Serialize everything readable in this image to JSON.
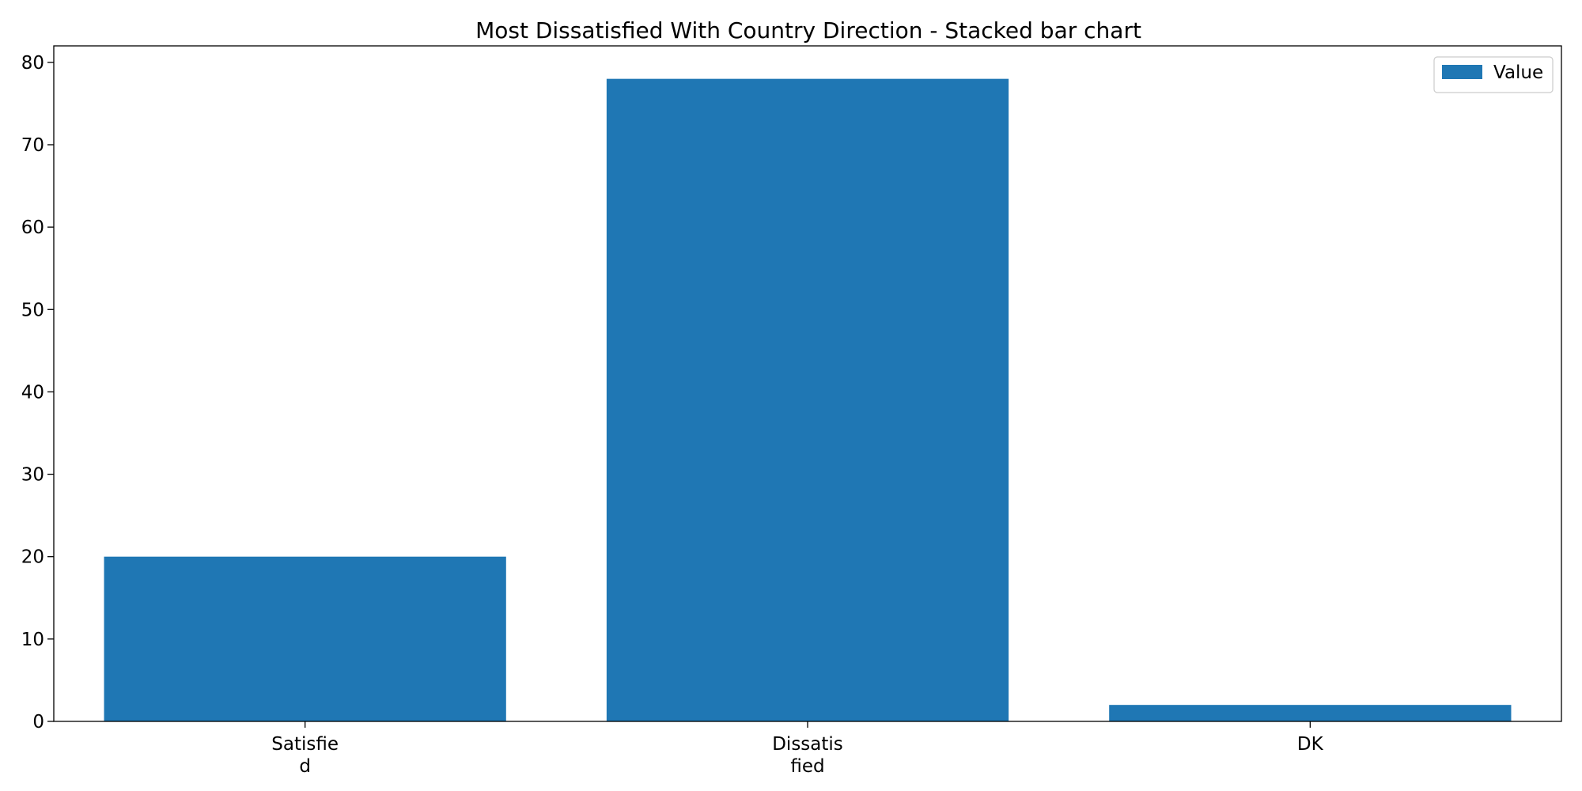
{
  "chart_data": {
    "type": "bar",
    "title": "Most Dissatisfied With Country Direction  - Stacked bar chart",
    "xlabel": "",
    "ylabel": "",
    "categories": [
      [
        "Satisfie",
        "d"
      ],
      [
        "Dissatis",
        "fied"
      ],
      [
        "DK"
      ]
    ],
    "series": [
      {
        "name": "Value",
        "color": "#1f77b4",
        "values": [
          20,
          78,
          2
        ]
      }
    ],
    "ylim": [
      0,
      82
    ],
    "yticks": [
      "0",
      "10",
      "20",
      "30",
      "40",
      "50",
      "60",
      "70",
      "80"
    ],
    "grid": false,
    "legend_position": "top-right"
  }
}
